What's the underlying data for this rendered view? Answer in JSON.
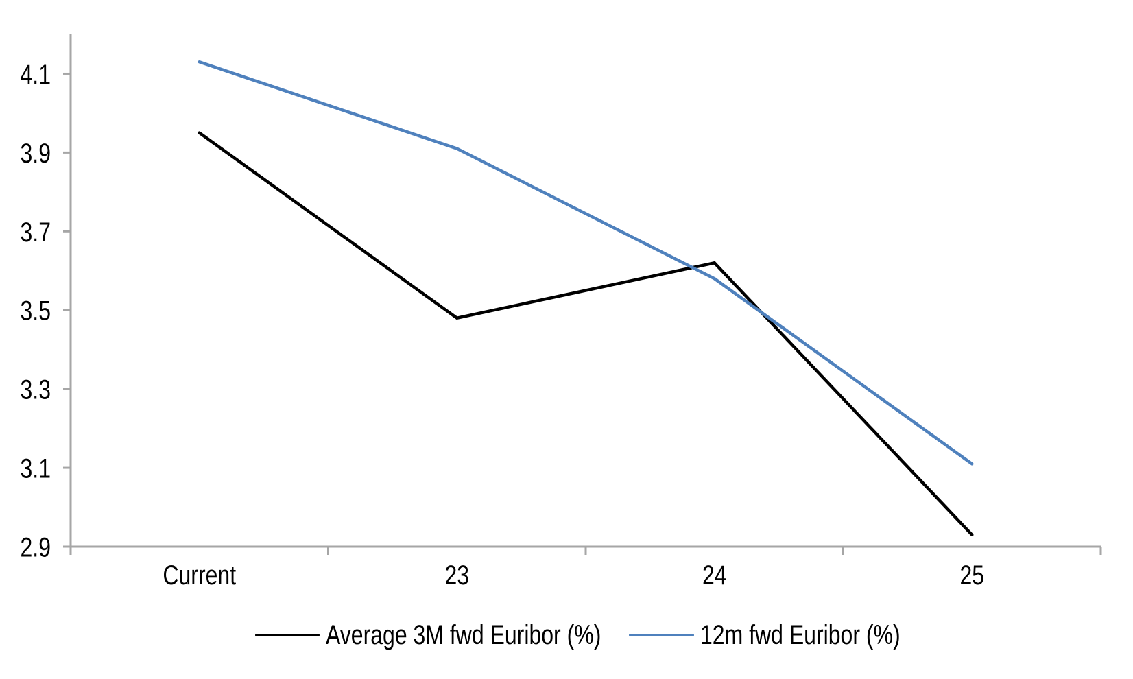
{
  "chart_data": {
    "type": "line",
    "title": "",
    "xlabel": "",
    "ylabel": "",
    "categories": [
      "Current",
      "23",
      "24",
      "25"
    ],
    "series": [
      {
        "name": "Average 3M fwd Euribor (%)",
        "color": "#000000",
        "width": 4.5,
        "values": [
          3.95,
          3.48,
          3.62,
          2.93
        ]
      },
      {
        "name": "12m fwd Euribor (%)",
        "color": "#4F81BD",
        "width": 4.5,
        "values": [
          4.13,
          3.91,
          3.58,
          3.11
        ]
      }
    ],
    "ylim": [
      2.9,
      4.2
    ],
    "yticks": [
      2.9,
      3.1,
      3.3,
      3.5,
      3.7,
      3.9,
      4.1
    ],
    "grid": false,
    "legend_position": "bottom",
    "axis_color": "#A6A6A6",
    "text_color": "#000000",
    "background_color": "#FFFFFF"
  }
}
